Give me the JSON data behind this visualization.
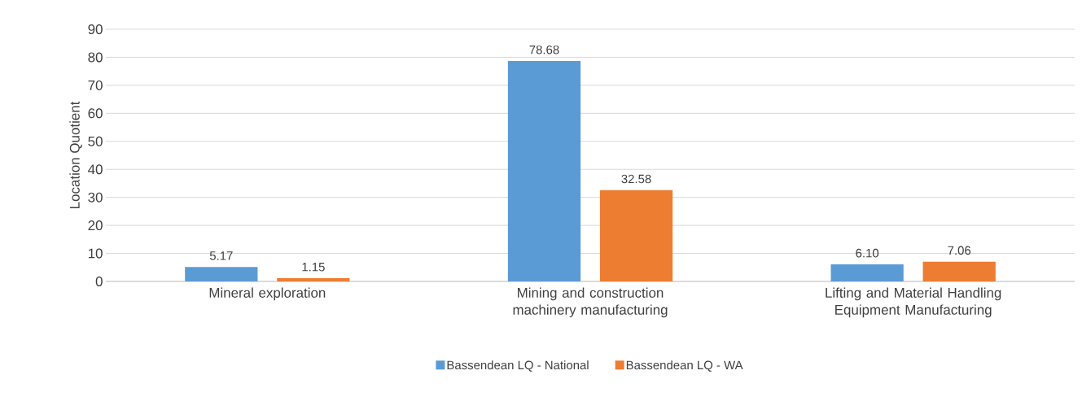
{
  "chart_data": {
    "type": "bar",
    "ylabel": "Location Quotient",
    "categories": [
      "Mineral exploration",
      "Mining and construction machinery manufacturing",
      "Lifting and Material Handling Equipment Manufacturing"
    ],
    "series": [
      {
        "name": "Bassendean LQ - National",
        "color": "#5b9bd5",
        "values": [
          5.17,
          78.68,
          6.1
        ],
        "value_labels": [
          "5.17",
          "78.68",
          "6.10"
        ]
      },
      {
        "name": "Bassendean LQ - WA",
        "color": "#ed7d31",
        "values": [
          1.15,
          32.58,
          7.06
        ],
        "value_labels": [
          "1.15",
          "32.58",
          "7.06"
        ]
      }
    ],
    "ylim": [
      0,
      90
    ],
    "yticks": [
      0,
      10,
      20,
      30,
      40,
      50,
      60,
      70,
      80,
      90
    ],
    "grid": "y",
    "legend": "bottom"
  }
}
